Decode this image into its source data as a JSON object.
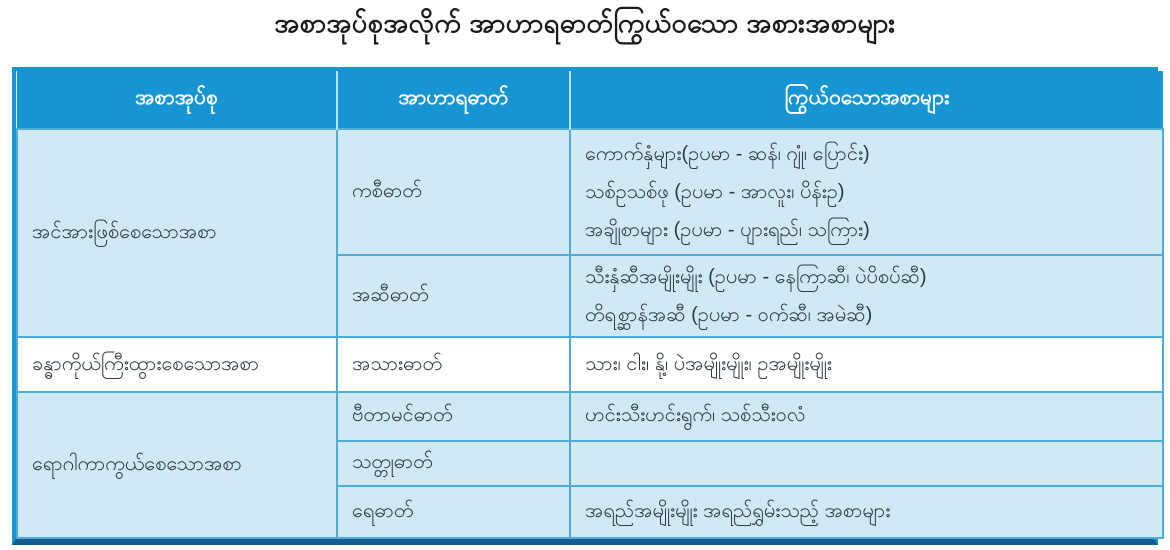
{
  "title": "အစာအုပ်စုအလိုက် အာဟာရဓာတ်ကြွယ်ဝသော အစားအစာများ",
  "colors": {
    "header_bg": "#1795d2",
    "row_light_bg": "#cfe9f7",
    "row_white_bg": "#ffffff",
    "grid_line": "#4fabd9",
    "outer_border": "#1795d2",
    "bottom_border": "#135c90",
    "header_text": "#ffffff",
    "body_text": "#2d3a45"
  },
  "table": {
    "headers": [
      "အစာအုပ်စု",
      "အာဟာရဓာတ်",
      "ကြွယ်ဝသောအစာများ"
    ],
    "groups": [
      {
        "name": "အင်အားဖြစ်စေသောအစာ",
        "rows": [
          {
            "nutrient": "ကစီဓာတ်",
            "foods": [
              "ကောက်နှံများ(ဥပမာ - ဆန်၊ ဂျုံ၊ ပြောင်း)",
              "သစ်ဥသစ်ဖု  (ဥပမာ - အာလူး၊ ပိန်းဥ)",
              "အချိုစာများ  (ဥပမာ - ပျားရည်၊ သကြား)"
            ]
          },
          {
            "nutrient": "အဆီဓာတ်",
            "foods": [
              "သီးနှံဆီအမျိုးမျိုး (ဥပမာ - နေကြာဆီ၊ ပဲပိစပ်ဆီ)",
              "တိရစ္ဆာန်အဆီ   (ဥပမာ - ဝက်ဆီ၊ အမဲဆီ)"
            ]
          }
        ]
      },
      {
        "name": "ခန္ဓာကိုယ်ကြီးထွားစေသောအစာ",
        "rows": [
          {
            "nutrient": "အသားဓာတ်",
            "foods": [
              "သား၊ ငါး၊ နို့၊ ပဲအမျိုးမျိုး၊ ဥအမျိုးမျိုး"
            ]
          }
        ]
      },
      {
        "name": "ရောဂါကာကွယ်စေသောအစာ",
        "rows": [
          {
            "nutrient": "ဗီတာမင်ဓာတ်",
            "foods": [
              "ဟင်းသီးဟင်းရွက်၊ သစ်သီးဝလံ"
            ]
          },
          {
            "nutrient": "သတ္တုဓာတ်",
            "foods": []
          },
          {
            "nutrient": "ရေဓာတ်",
            "foods": [
              "အရည်အမျိုးမျိုး အရည်ရွှမ်းသည့် အစာများ"
            ]
          }
        ]
      }
    ]
  }
}
